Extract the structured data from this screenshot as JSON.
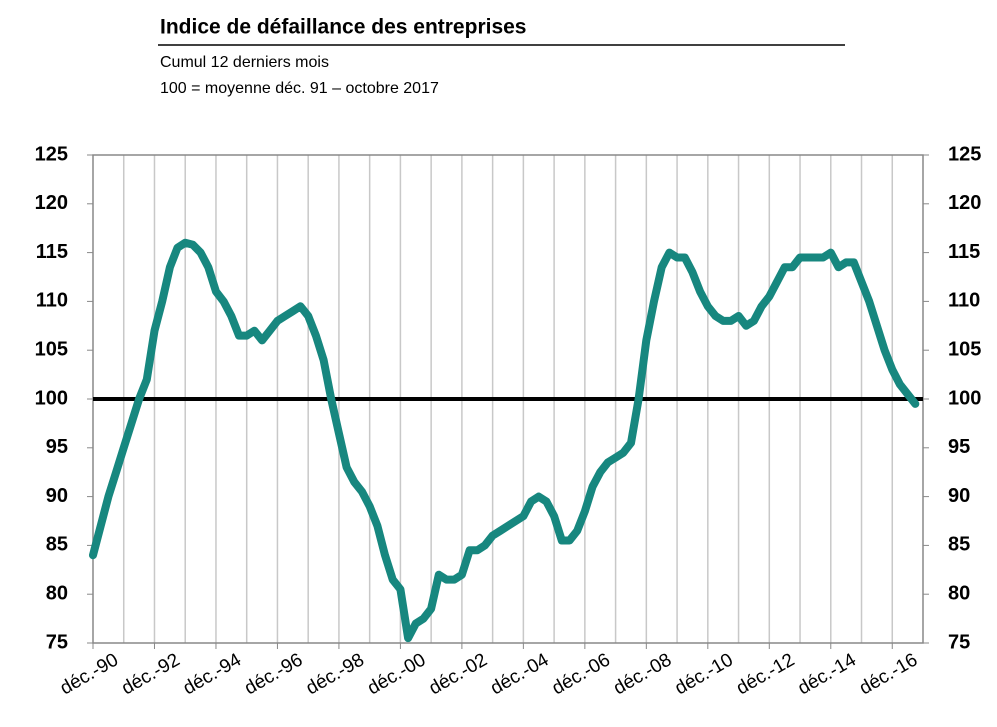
{
  "chart_data": {
    "type": "line",
    "title": "Indice de défaillance des entreprises",
    "subtitle": "Cumul 12 derniers mois",
    "subtitle2": "100 = moyenne déc. 91 – octobre 2017",
    "categories": [
      "déc.-90",
      null,
      null,
      null,
      null,
      null,
      null,
      null,
      "déc.-92",
      null,
      null,
      null,
      null,
      null,
      null,
      null,
      "déc.-94",
      null,
      null,
      null,
      null,
      null,
      null,
      null,
      "déc.-96",
      null,
      null,
      null,
      null,
      null,
      null,
      null,
      "déc.-98",
      null,
      null,
      null,
      null,
      null,
      null,
      null,
      "déc.-00",
      null,
      null,
      null,
      null,
      null,
      null,
      null,
      "déc.-02",
      null,
      null,
      null,
      null,
      null,
      null,
      null,
      "déc.-04",
      null,
      null,
      null,
      null,
      null,
      null,
      null,
      "déc.-06",
      null,
      null,
      null,
      null,
      null,
      null,
      null,
      "déc.-08",
      null,
      null,
      null,
      null,
      null,
      null,
      null,
      "déc.-10",
      null,
      null,
      null,
      null,
      null,
      null,
      null,
      "déc.-12",
      null,
      null,
      null,
      null,
      null,
      null,
      null,
      "déc.-14",
      null,
      null,
      null,
      null,
      null,
      null,
      null,
      "déc.-16",
      null,
      null,
      null
    ],
    "series": [
      {
        "color": "#17877f",
        "values": [
          84,
          87,
          90,
          92.5,
          95,
          97.5,
          100,
          102,
          107,
          110,
          113.5,
          115.5,
          116,
          115.8,
          115,
          113.5,
          111,
          110,
          108.5,
          106.5,
          106.5,
          107,
          106,
          107,
          108,
          108.5,
          109,
          109.5,
          108.5,
          106.5,
          104,
          100,
          96.5,
          93,
          91.5,
          90.5,
          89,
          87,
          84,
          81.5,
          80.5,
          75.5,
          77,
          77.5,
          78.5,
          82,
          81.5,
          81.5,
          82,
          84.5,
          84.5,
          85,
          86,
          86.5,
          87,
          87.5,
          88,
          89.5,
          90,
          89.5,
          88,
          85.5,
          85.5,
          86.5,
          88.5,
          91,
          92.5,
          93.5,
          94,
          94.5,
          95.5,
          100,
          106,
          110,
          113.5,
          115,
          114.5,
          114.5,
          113,
          111,
          109.5,
          108.5,
          108,
          108,
          108.5,
          107.5,
          108,
          109.5,
          110.5,
          112,
          113.5,
          113.5,
          114.5,
          114.5,
          114.5,
          114.5,
          115,
          113.5,
          114,
          114,
          112,
          110,
          107.5,
          105,
          103,
          101.5,
          100.5,
          99.5
        ]
      }
    ],
    "reference_line": 100,
    "ylim": [
      75,
      125
    ],
    "yticks": [
      75,
      80,
      85,
      90,
      95,
      100,
      105,
      110,
      115,
      120,
      125
    ],
    "y2lim": [
      75,
      125
    ],
    "y2ticks": [
      75,
      80,
      85,
      90,
      95,
      100,
      105,
      110,
      115,
      120,
      125
    ],
    "grid": true
  }
}
